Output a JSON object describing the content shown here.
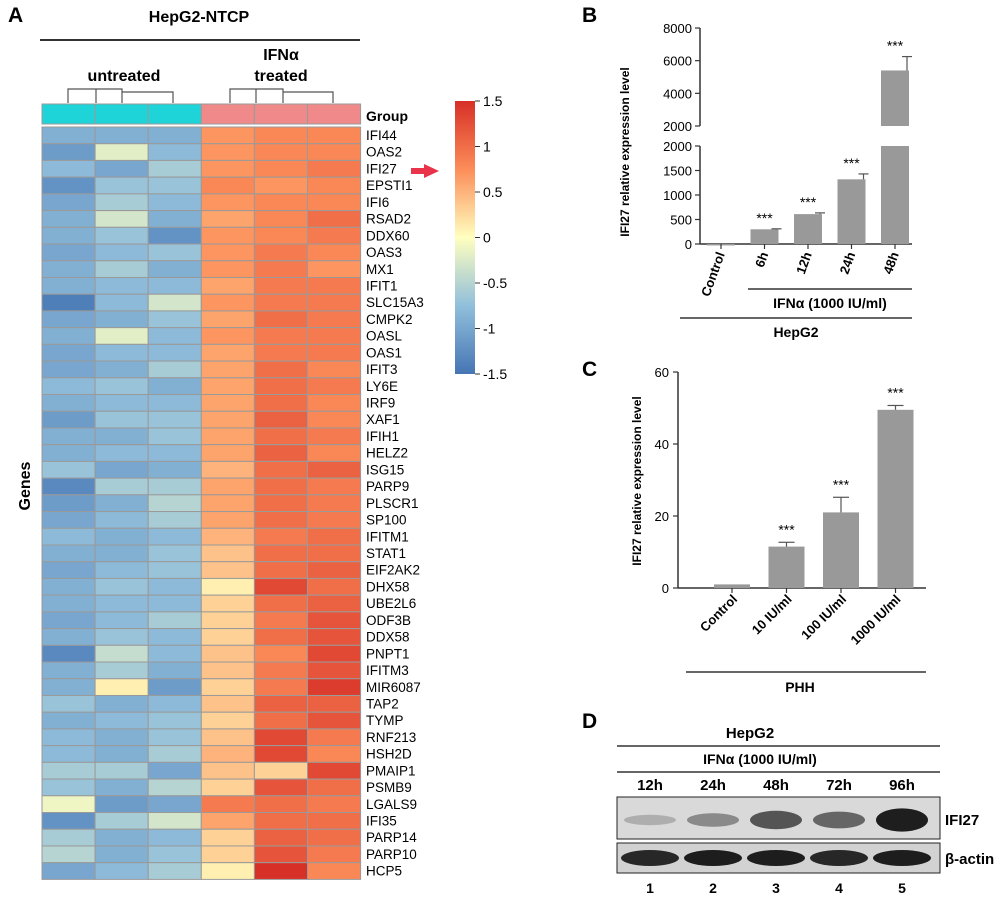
{
  "panels": {
    "A": {
      "letter": "A",
      "header": "HepG2-NTCP",
      "untreated_label": "untreated",
      "ifn_label_1": "IFNα",
      "ifn_label_2": "treated",
      "group_label": "Group",
      "genes_label": "Genes",
      "colorbar_ticks": [
        "1.5",
        "1",
        "0.5",
        "0",
        "-0.5",
        "-1",
        "-1.5"
      ],
      "colors": {
        "low": "#4575b4",
        "mid": "#ffffbf",
        "high": "#d73027",
        "untreated_group": "#1fd4d8",
        "treated_group": "#f08a8a",
        "arrow": "#e8334a"
      }
    },
    "B": {
      "letter": "B",
      "ylabel": "IFI27 relative expression level",
      "bracket_label": "IFNα (1000 IU/ml)",
      "cell_label": "HepG2"
    },
    "C": {
      "letter": "C",
      "ylabel": "IFI27 relative expression level",
      "cell_label": "PHH"
    },
    "D": {
      "letter": "D",
      "cell_label": "HepG2",
      "treatment": "IFNα (1000 IU/ml)",
      "timepoints": [
        "12h",
        "24h",
        "48h",
        "72h",
        "96h"
      ],
      "band_labels": [
        "IFI27",
        "β-actin"
      ],
      "lanes": [
        "1",
        "2",
        "3",
        "4",
        "5"
      ],
      "ifi27_intensity": [
        0.15,
        0.35,
        0.65,
        0.55,
        0.95
      ],
      "actin_intensity": [
        0.85,
        0.9,
        0.9,
        0.85,
        0.9
      ]
    }
  },
  "chart_data": [
    {
      "type": "heatmap",
      "title": "HepG2-NTCP",
      "columns": [
        "untreated 1",
        "untreated 2",
        "untreated 3",
        "IFNα treated 1",
        "IFNα treated 2",
        "IFNα treated 3"
      ],
      "groups": [
        "untreated",
        "untreated",
        "untreated",
        "treated",
        "treated",
        "treated"
      ],
      "rows": [
        "IFI44",
        "OAS2",
        "IFI27",
        "EPSTI1",
        "IFI6",
        "RSAD2",
        "DDX60",
        "OAS3",
        "MX1",
        "IFIT1",
        "SLC15A3",
        "CMPK2",
        "OASL",
        "OAS1",
        "IFIT3",
        "LY6E",
        "IRF9",
        "XAF1",
        "IFIH1",
        "HELZ2",
        "ISG15",
        "PARP9",
        "PLSCR1",
        "SP100",
        "IFITM1",
        "STAT1",
        "EIF2AK2",
        "DHX58",
        "UBE2L6",
        "ODF3B",
        "DDX58",
        "PNPT1",
        "IFITM3",
        "MIR6087",
        "TAP2",
        "TYMP",
        "RNF213",
        "HSH2D",
        "PMAIP1",
        "PSMB9",
        "LGALS9",
        "IFI35",
        "PARP14",
        "PARP10",
        "HCP5"
      ],
      "highlight_row": "IFI27",
      "values": [
        [
          -0.9,
          -0.9,
          -0.9,
          0.7,
          0.8,
          0.8
        ],
        [
          -1.1,
          -0.2,
          -0.8,
          0.7,
          0.8,
          0.8
        ],
        [
          -0.8,
          -1.0,
          -0.6,
          0.7,
          0.8,
          0.9
        ],
        [
          -1.2,
          -0.7,
          -0.7,
          0.8,
          0.7,
          0.8
        ],
        [
          -1.0,
          -0.6,
          -0.8,
          0.7,
          0.8,
          0.8
        ],
        [
          -0.9,
          -0.3,
          -0.9,
          0.6,
          0.8,
          1.0
        ],
        [
          -0.9,
          -0.7,
          -1.2,
          0.7,
          0.8,
          0.9
        ],
        [
          -1.0,
          -0.8,
          -0.7,
          0.7,
          0.9,
          0.8
        ],
        [
          -0.9,
          -0.6,
          -0.9,
          0.7,
          0.9,
          0.7
        ],
        [
          -0.9,
          -0.8,
          -0.8,
          0.6,
          0.9,
          0.9
        ],
        [
          -1.4,
          -0.8,
          -0.3,
          0.7,
          0.9,
          0.9
        ],
        [
          -1.0,
          -0.9,
          -0.7,
          0.6,
          1.0,
          0.9
        ],
        [
          -0.9,
          -0.2,
          -0.8,
          0.7,
          0.9,
          0.9
        ],
        [
          -1.0,
          -0.8,
          -0.8,
          0.6,
          0.9,
          0.9
        ],
        [
          -1.0,
          -0.9,
          -0.6,
          0.6,
          1.0,
          0.8
        ],
        [
          -0.8,
          -0.7,
          -0.9,
          0.6,
          1.0,
          0.9
        ],
        [
          -0.9,
          -0.8,
          -0.8,
          0.6,
          1.0,
          0.8
        ],
        [
          -1.1,
          -0.7,
          -0.7,
          0.6,
          1.1,
          0.8
        ],
        [
          -0.9,
          -0.9,
          -0.7,
          0.6,
          1.0,
          0.9
        ],
        [
          -0.9,
          -0.8,
          -0.8,
          0.6,
          1.1,
          0.8
        ],
        [
          -0.7,
          -1.0,
          -0.9,
          0.5,
          1.0,
          1.1
        ],
        [
          -1.3,
          -0.6,
          -0.6,
          0.6,
          1.0,
          0.9
        ],
        [
          -1.1,
          -0.9,
          -0.5,
          0.6,
          1.0,
          0.9
        ],
        [
          -1.0,
          -0.8,
          -0.6,
          0.6,
          1.0,
          0.9
        ],
        [
          -0.8,
          -0.9,
          -0.8,
          0.5,
          0.9,
          1.0
        ],
        [
          -0.9,
          -0.9,
          -0.7,
          0.4,
          1.0,
          1.0
        ],
        [
          -1.0,
          -0.8,
          -0.7,
          0.4,
          1.0,
          1.1
        ],
        [
          -0.9,
          -0.7,
          -0.8,
          0.1,
          1.3,
          1.0
        ],
        [
          -0.9,
          -0.8,
          -0.8,
          0.3,
          1.0,
          1.1
        ],
        [
          -1.0,
          -0.8,
          -0.6,
          0.3,
          0.9,
          1.2
        ],
        [
          -0.9,
          -0.7,
          -0.8,
          0.3,
          1.0,
          1.2
        ],
        [
          -1.3,
          -0.4,
          -0.8,
          0.4,
          0.8,
          1.3
        ],
        [
          -0.9,
          -0.6,
          -0.9,
          0.4,
          0.9,
          1.2
        ],
        [
          -0.9,
          0.1,
          -1.1,
          0.3,
          0.9,
          1.4
        ],
        [
          -0.7,
          -0.9,
          -0.8,
          0.4,
          1.1,
          1.1
        ],
        [
          -0.9,
          -0.8,
          -0.7,
          0.3,
          1.0,
          1.2
        ],
        [
          -0.8,
          -0.9,
          -0.7,
          0.4,
          1.3,
          0.9
        ],
        [
          -0.8,
          -0.9,
          -0.6,
          0.5,
          1.3,
          0.8
        ],
        [
          -0.6,
          -0.6,
          -1.0,
          0.4,
          0.3,
          1.3
        ],
        [
          -0.7,
          -0.9,
          -0.5,
          0.3,
          1.2,
          1.0
        ],
        [
          -0.1,
          -1.1,
          -1.0,
          0.9,
          1.0,
          0.9
        ],
        [
          -1.2,
          -0.6,
          -0.3,
          0.6,
          1.0,
          1.0
        ],
        [
          -0.6,
          -0.9,
          -0.8,
          0.3,
          1.1,
          1.0
        ],
        [
          -0.5,
          -0.9,
          -0.7,
          0.3,
          1.2,
          0.9
        ],
        [
          -1.0,
          -0.8,
          -0.6,
          0.1,
          1.5,
          0.8
        ]
      ],
      "colorbar_range": [
        -1.5,
        1.5
      ]
    },
    {
      "type": "bar",
      "title": "",
      "ylabel": "IFI27 relative expression level",
      "xlabel": "HepG2",
      "categories": [
        "Control",
        "6h",
        "12h",
        "24h",
        "48h"
      ],
      "values": [
        1,
        300,
        610,
        1320,
        5400
      ],
      "errors": [
        0,
        10,
        25,
        110,
        850
      ],
      "significance": [
        "",
        "***",
        "***",
        "***",
        "***"
      ],
      "y_axis_break": [
        2000,
        2000
      ],
      "lower_ticks": [
        "0",
        "500",
        "1000",
        "1500",
        "2000"
      ],
      "upper_ticks": [
        "2000",
        "4000",
        "6000",
        "8000"
      ],
      "lower_range": [
        0,
        2000
      ],
      "upper_range": [
        2000,
        8000
      ]
    },
    {
      "type": "bar",
      "title": "",
      "ylabel": "IFI27 relative expression level",
      "xlabel": "PHH",
      "categories": [
        "Control",
        "10 IU/ml",
        "100 IU/ml",
        "1000 IU/ml"
      ],
      "values": [
        1,
        11.5,
        21,
        49.5
      ],
      "errors": [
        0,
        1.2,
        4.2,
        1.2
      ],
      "significance": [
        "",
        "***",
        "***",
        "***"
      ],
      "ylim": [
        0,
        60
      ],
      "ticks": [
        "0",
        "20",
        "40",
        "60"
      ]
    }
  ]
}
